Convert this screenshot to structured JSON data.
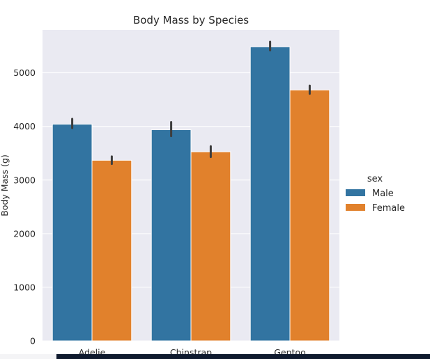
{
  "chart_data": {
    "type": "bar",
    "title": "Body Mass by Species",
    "xlabel": "",
    "ylabel": "Body Mass (g)",
    "categories": [
      "Adelie",
      "Chinstrap",
      "Gentoo"
    ],
    "ylim": [
      0,
      5800
    ],
    "yticks": [
      0,
      1000,
      2000,
      3000,
      4000,
      5000
    ],
    "grid": true,
    "legend": {
      "title": "sex",
      "placement": "right"
    },
    "series": [
      {
        "name": "Male",
        "color": "#3274a1",
        "values": [
          4043,
          3939,
          5485
        ],
        "err_low": [
          3970,
          3820,
          5420
        ],
        "err_high": [
          4140,
          4080,
          5580
        ]
      },
      {
        "name": "Female",
        "color": "#e1812c",
        "values": [
          3369,
          3527,
          4680
        ],
        "err_low": [
          3300,
          3430,
          4610
        ],
        "err_high": [
          3440,
          3630,
          4760
        ]
      }
    ]
  }
}
